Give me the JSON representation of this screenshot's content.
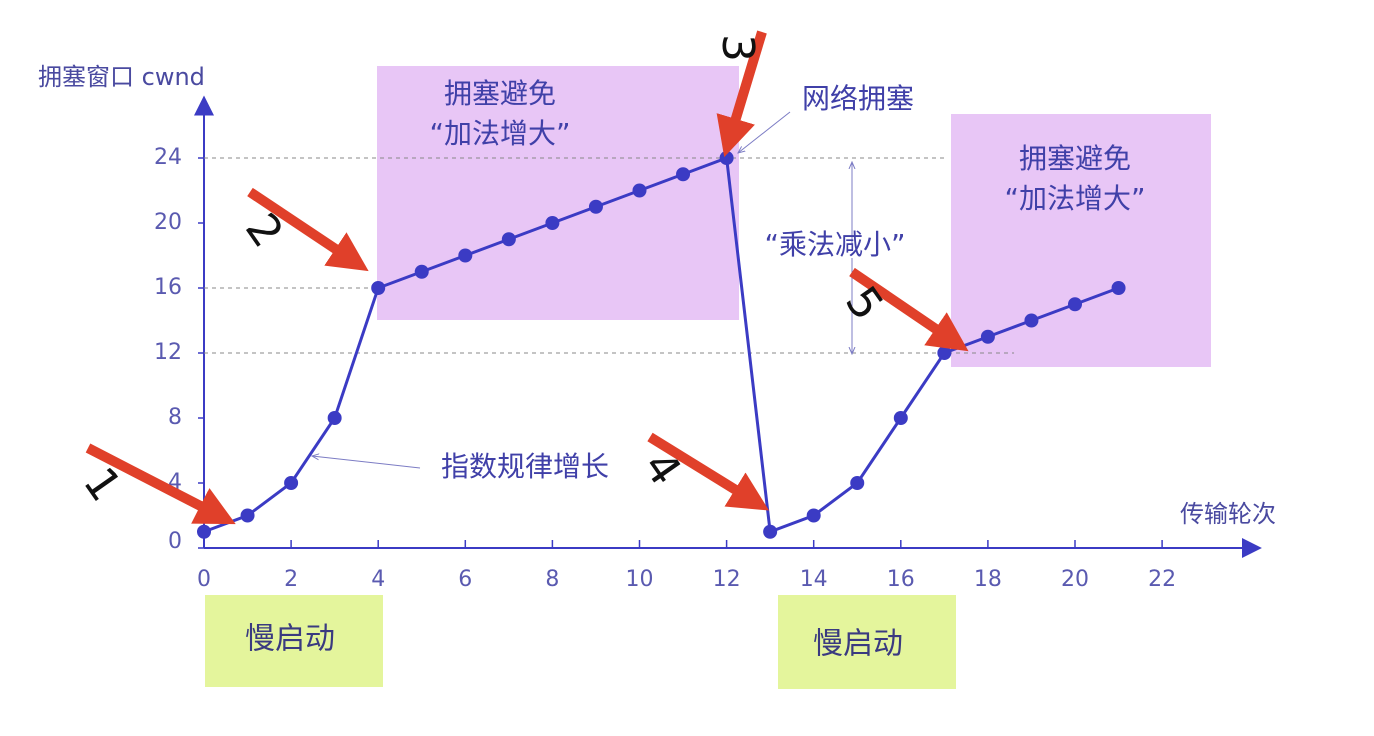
{
  "chart_data": {
    "type": "line",
    "y_label": "拥塞窗口 cwnd",
    "x_label": "传输轮次",
    "series": [
      {
        "color": "#3b3bc4",
        "x": [
          0,
          1,
          2,
          3,
          4,
          5,
          6,
          7,
          8,
          9,
          10,
          11,
          12,
          13,
          14,
          15,
          16,
          17,
          18,
          19,
          20,
          21
        ],
        "values": [
          1,
          2,
          4,
          8,
          16,
          17,
          18,
          19,
          20,
          21,
          22,
          23,
          24,
          1,
          2,
          4,
          8,
          12,
          13,
          14,
          15,
          16
        ]
      }
    ],
    "xlim": [
      0,
      24.2
    ],
    "ylim": [
      0,
      27.6
    ],
    "xticks": [
      0,
      2,
      4,
      6,
      8,
      10,
      12,
      14,
      16,
      18,
      20,
      22
    ],
    "yticks": [
      0,
      4,
      8,
      12,
      16,
      20,
      24
    ],
    "annotations": [
      "拥塞避免",
      "“加法增大”",
      "拥塞避免",
      "“加法增大”",
      "网络拥塞",
      "“乘法减小”",
      "指数规律增长",
      "慢启动",
      "慢启动"
    ],
    "markers": [
      "1",
      "2",
      "3",
      "4",
      "5"
    ]
  }
}
